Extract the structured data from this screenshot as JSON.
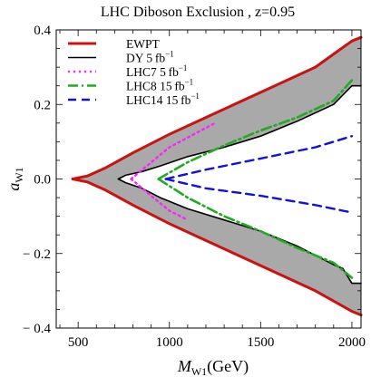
{
  "chart_data": {
    "type": "area",
    "title": "LHC Diboson Exclusion , z=0.95",
    "xlabel": {
      "symbol": "M",
      "sub": "W1",
      "unit": "(GeV)"
    },
    "ylabel": {
      "symbol": "a",
      "sub": "W1"
    },
    "xlim": [
      380,
      2050
    ],
    "ylim": [
      -0.4,
      0.4
    ],
    "xticks": [
      500,
      1000,
      1500,
      2000
    ],
    "xtick_labels": [
      "500",
      "1000",
      "1500",
      "2000"
    ],
    "yticks": [
      -0.4,
      -0.2,
      0.0,
      0.2,
      0.4
    ],
    "ytick_labels": [
      "− 0.4",
      "− 0.2",
      "0.0",
      "0.2",
      "0.4"
    ],
    "legend_position": "top-left",
    "series": [
      {
        "name": "EWPT",
        "unit": "",
        "color": "#cc1111",
        "dash": "solid",
        "upper": [
          [
            470,
            0.0
          ],
          [
            550,
            0.008
          ],
          [
            650,
            0.03
          ],
          [
            800,
            0.07
          ],
          [
            1000,
            0.12
          ],
          [
            1200,
            0.165
          ],
          [
            1400,
            0.21
          ],
          [
            1600,
            0.255
          ],
          [
            1800,
            0.3
          ],
          [
            2000,
            0.37
          ],
          [
            2050,
            0.38
          ]
        ],
        "lower": [
          [
            470,
            0.0
          ],
          [
            550,
            -0.008
          ],
          [
            650,
            -0.03
          ],
          [
            800,
            -0.07
          ],
          [
            1000,
            -0.12
          ],
          [
            1200,
            -0.165
          ],
          [
            1400,
            -0.21
          ],
          [
            1600,
            -0.255
          ],
          [
            1800,
            -0.3
          ],
          [
            2000,
            -0.355
          ],
          [
            2050,
            -0.365
          ]
        ]
      },
      {
        "name": "DY",
        "unit": "5 fb",
        "color": "#000000",
        "dash": "solid",
        "upper": [
          [
            720,
            0.0
          ],
          [
            760,
            0.01
          ],
          [
            850,
            0.02
          ],
          [
            950,
            0.035
          ],
          [
            1100,
            0.06
          ],
          [
            1300,
            0.085
          ],
          [
            1500,
            0.115
          ],
          [
            1700,
            0.155
          ],
          [
            1900,
            0.2
          ],
          [
            2000,
            0.25
          ],
          [
            2050,
            0.25
          ]
        ],
        "lower": [
          [
            720,
            0.0
          ],
          [
            760,
            -0.01
          ],
          [
            850,
            -0.025
          ],
          [
            950,
            -0.05
          ],
          [
            1100,
            -0.08
          ],
          [
            1300,
            -0.11
          ],
          [
            1500,
            -0.14
          ],
          [
            1700,
            -0.18
          ],
          [
            1800,
            -0.205
          ],
          [
            1900,
            -0.23
          ],
          [
            1950,
            -0.24
          ],
          [
            2000,
            -0.28
          ],
          [
            2050,
            -0.28
          ]
        ]
      },
      {
        "name": "LHC7",
        "unit": "5 fb",
        "color": "#ff22ff",
        "dash": "dot",
        "upper": [
          [
            790,
            0.0
          ],
          [
            1000,
            0.085
          ],
          [
            1250,
            0.15
          ]
        ],
        "lower": [
          [
            790,
            0.0
          ],
          [
            900,
            -0.045
          ],
          [
            1000,
            -0.085
          ],
          [
            1100,
            -0.11
          ]
        ]
      },
      {
        "name": "LHC8",
        "unit": "15 fb",
        "color": "#22aa22",
        "dash": "dashdot",
        "upper": [
          [
            940,
            0.0
          ],
          [
            1100,
            0.045
          ],
          [
            1300,
            0.09
          ],
          [
            1500,
            0.13
          ],
          [
            1700,
            0.165
          ],
          [
            1900,
            0.21
          ],
          [
            2000,
            0.265
          ]
        ],
        "lower": [
          [
            940,
            0.0
          ],
          [
            1100,
            -0.05
          ],
          [
            1300,
            -0.1
          ],
          [
            1500,
            -0.14
          ],
          [
            1700,
            -0.185
          ],
          [
            1900,
            -0.225
          ],
          [
            2000,
            -0.265
          ]
        ]
      },
      {
        "name": "LHC14",
        "unit": "15 fb",
        "color": "#1111dd",
        "dash": "dash",
        "upper": [
          [
            980,
            0.0
          ],
          [
            1200,
            0.025
          ],
          [
            1500,
            0.055
          ],
          [
            1800,
            0.085
          ],
          [
            2000,
            0.115
          ]
        ],
        "lower": [
          [
            980,
            0.0
          ],
          [
            1200,
            -0.025
          ],
          [
            1500,
            -0.045
          ],
          [
            1800,
            -0.07
          ],
          [
            2000,
            -0.09
          ]
        ]
      }
    ]
  }
}
